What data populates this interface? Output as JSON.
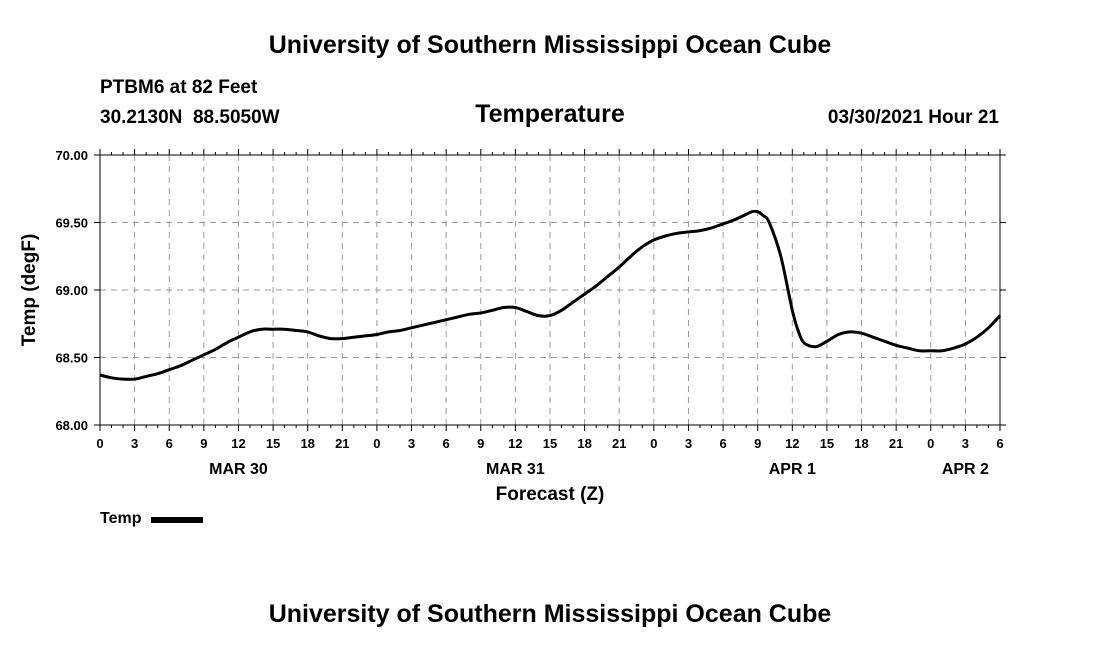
{
  "header": {
    "title": "University of Southern Mississippi Ocean Cube",
    "station": "PTBM6 at 82 Feet",
    "coords": "30.2130N  88.5050W",
    "chart_title": "Temperature",
    "timestamp": "03/30/2021 Hour 21"
  },
  "footer": {
    "title": "University of Southern Mississippi Ocean Cube"
  },
  "legend": {
    "label": "Temp",
    "color": "#000000"
  },
  "chart_data": {
    "type": "line",
    "title": "Temperature",
    "xlabel": "Forecast (Z)",
    "ylabel": "Temp (degF)",
    "ylim": [
      68.0,
      70.0
    ],
    "yticks": [
      "68.00",
      "68.50",
      "69.00",
      "69.50",
      "70.00"
    ],
    "xlim": [
      0,
      78
    ],
    "xticks": [
      {
        "x": 0,
        "label": "0"
      },
      {
        "x": 3,
        "label": "3"
      },
      {
        "x": 6,
        "label": "6"
      },
      {
        "x": 9,
        "label": "9"
      },
      {
        "x": 12,
        "label": "12"
      },
      {
        "x": 15,
        "label": "15"
      },
      {
        "x": 18,
        "label": "18"
      },
      {
        "x": 21,
        "label": "21"
      },
      {
        "x": 24,
        "label": "0"
      },
      {
        "x": 27,
        "label": "3"
      },
      {
        "x": 30,
        "label": "6"
      },
      {
        "x": 33,
        "label": "9"
      },
      {
        "x": 36,
        "label": "12"
      },
      {
        "x": 39,
        "label": "15"
      },
      {
        "x": 42,
        "label": "18"
      },
      {
        "x": 45,
        "label": "21"
      },
      {
        "x": 48,
        "label": "0"
      },
      {
        "x": 51,
        "label": "3"
      },
      {
        "x": 54,
        "label": "6"
      },
      {
        "x": 57,
        "label": "9"
      },
      {
        "x": 60,
        "label": "12"
      },
      {
        "x": 63,
        "label": "15"
      },
      {
        "x": 66,
        "label": "18"
      },
      {
        "x": 69,
        "label": "21"
      },
      {
        "x": 72,
        "label": "0"
      },
      {
        "x": 75,
        "label": "3"
      },
      {
        "x": 78,
        "label": "6"
      }
    ],
    "date_labels": [
      {
        "x": 12,
        "label": "MAR 30"
      },
      {
        "x": 36,
        "label": "MAR 31"
      },
      {
        "x": 60,
        "label": "APR 1"
      },
      {
        "x": 75,
        "label": "APR 2"
      }
    ],
    "grid": true,
    "series": [
      {
        "name": "Temp",
        "x": [
          0,
          1,
          2,
          3,
          4,
          5,
          6,
          7,
          8,
          9,
          10,
          11,
          12,
          13,
          14,
          15,
          16,
          17,
          18,
          19,
          20,
          21,
          22,
          23,
          24,
          25,
          26,
          27,
          28,
          29,
          30,
          31,
          32,
          33,
          34,
          35,
          36,
          37,
          38,
          39,
          40,
          41,
          42,
          43,
          44,
          45,
          46,
          47,
          48,
          49,
          50,
          51,
          52,
          53,
          54,
          55,
          56,
          56.5,
          57,
          57.5,
          58,
          59,
          60,
          60.5,
          61,
          62,
          63,
          64,
          65,
          66,
          67,
          68,
          69,
          70,
          71,
          72,
          73,
          74,
          75,
          76,
          77,
          78
        ],
        "values": [
          68.37,
          68.35,
          68.34,
          68.34,
          68.36,
          68.38,
          68.41,
          68.44,
          68.48,
          68.52,
          68.56,
          68.61,
          68.65,
          68.69,
          68.71,
          68.71,
          68.71,
          68.7,
          68.69,
          68.66,
          68.64,
          68.64,
          68.65,
          68.66,
          68.67,
          68.69,
          68.7,
          68.72,
          68.74,
          68.76,
          68.78,
          68.8,
          68.82,
          68.83,
          68.85,
          68.87,
          68.87,
          68.84,
          68.81,
          68.81,
          68.85,
          68.91,
          68.97,
          69.03,
          69.1,
          69.17,
          69.25,
          69.32,
          69.37,
          69.4,
          69.42,
          69.43,
          69.44,
          69.46,
          69.49,
          69.52,
          69.56,
          69.58,
          69.58,
          69.55,
          69.5,
          69.25,
          68.85,
          68.7,
          68.61,
          68.58,
          68.62,
          68.67,
          68.69,
          68.68,
          68.65,
          68.62,
          68.59,
          68.57,
          68.55,
          68.55,
          68.55,
          68.57,
          68.6,
          68.65,
          68.72,
          68.81
        ]
      }
    ]
  }
}
